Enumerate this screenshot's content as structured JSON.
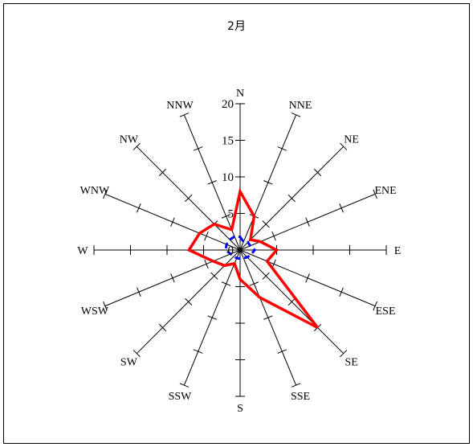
{
  "chart_data": {
    "type": "radar",
    "title": "2月",
    "directions": [
      "N",
      "NNE",
      "NE",
      "ENE",
      "E",
      "ESE",
      "SE",
      "SSE",
      "S",
      "SSW",
      "SW",
      "WSW",
      "W",
      "WNW",
      "NW",
      "NNW"
    ],
    "radial_ticks": [
      0,
      5,
      10,
      15,
      20
    ],
    "rlim": [
      0,
      20
    ],
    "series": [
      {
        "values": [
          8,
          5,
          2,
          3,
          5,
          4,
          15,
          7,
          4,
          2,
          3,
          4,
          7,
          6,
          5,
          3
        ],
        "color": "#ff0000",
        "style": "solid"
      },
      {
        "values": [
          1.8,
          1.2,
          1.5,
          1.5,
          2.0,
          1.6,
          1.4,
          1.2,
          1.2,
          1.2,
          1.2,
          1.4,
          2.0,
          2.0,
          2.0,
          2.0
        ],
        "color": "#0000ff",
        "style": "dashed"
      }
    ]
  }
}
